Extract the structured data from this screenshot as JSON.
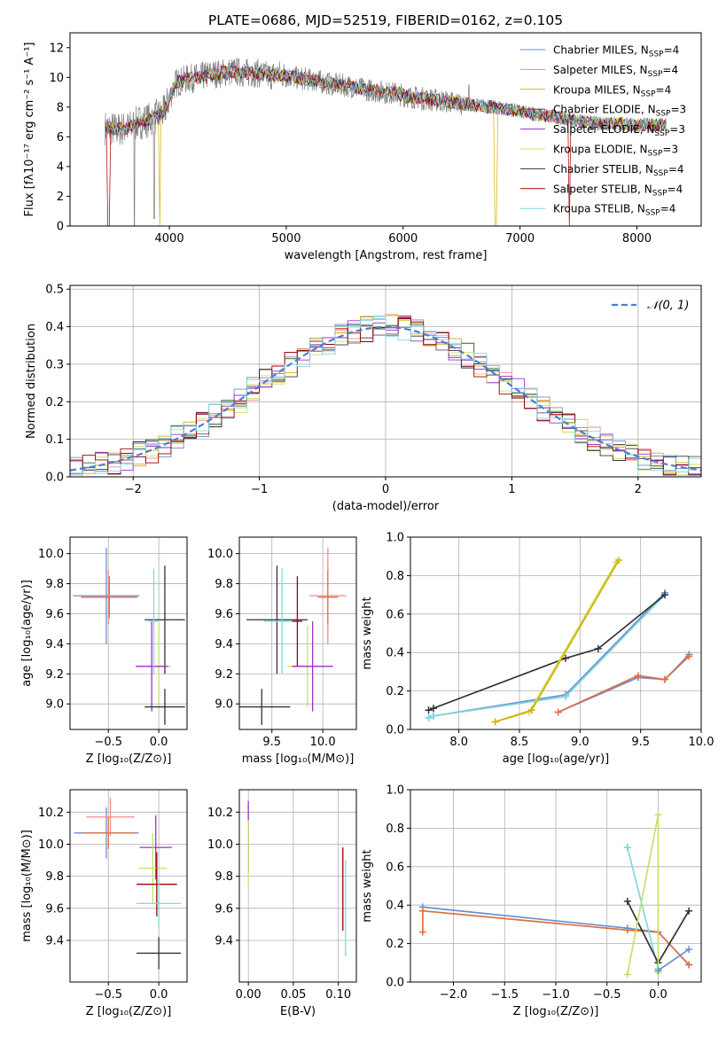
{
  "palette": [
    "#6a8fd0",
    "#f08a8a",
    "#d4b000",
    "#555555",
    "#9b30c8",
    "#c8e06a",
    "#333333",
    "#a00000",
    "#7fd8e0"
  ],
  "chart_data": [
    {
      "type": "line",
      "title": "PLATE=0686, MJD=52519, FIBERID=0162, z=0.105",
      "xlabel": "wavelength [Angstrom, rest frame]",
      "ylabel": "Flux [fλ10⁻¹⁷ erg cm⁻² s⁻¹ A⁻¹]",
      "xlim": [
        3150,
        8550
      ],
      "ylim": [
        0,
        13
      ],
      "xticks": [
        4000,
        5000,
        6000,
        7000,
        8000
      ],
      "yticks": [
        0,
        2,
        4,
        6,
        8,
        10,
        12
      ],
      "grid": false,
      "legend_position": "top-right",
      "legend": [
        "Chabrier MILES, N_SSP=4",
        "Salpeter MILES, N_SSP=4",
        "Kroupa MILES, N_SSP=4",
        "Chabrier ELODIE, N_SSP=3",
        "Salpeter ELODIE, N_SSP=3",
        "Kroupa ELODIE, N_SSP=3",
        "Chabrier STELIB, N_SSP=4",
        "Salpeter STELIB, N_SSP=4",
        "Kroupa STELIB, N_SSP=4"
      ],
      "spectrum_nodes": {
        "wavelength": [
          3450,
          3550,
          3650,
          3750,
          3850,
          3950,
          4050,
          4150,
          4250,
          4350,
          4450,
          4550,
          4650,
          4750,
          4850,
          4950,
          5050,
          5150,
          5250,
          5350,
          5450,
          5550,
          5650,
          5750,
          5850,
          5950,
          6050,
          6150,
          6250,
          6350,
          6450,
          6550,
          6650,
          6750,
          6850,
          6950,
          7050,
          7150,
          7250,
          7350,
          7450,
          7550,
          7650,
          7750,
          7850,
          7950,
          8050,
          8150,
          8250
        ],
        "flux": [
          6.6,
          6.5,
          6.6,
          7.0,
          7.2,
          7.6,
          9.6,
          9.9,
          10.0,
          10.2,
          10.3,
          10.4,
          10.3,
          10.3,
          10.1,
          10.2,
          10.0,
          9.9,
          9.8,
          9.6,
          9.5,
          9.4,
          9.2,
          9.1,
          9.0,
          8.9,
          8.7,
          8.6,
          8.5,
          8.4,
          8.3,
          8.2,
          8.1,
          8.0,
          7.9,
          7.8,
          7.6,
          7.5,
          7.4,
          7.3,
          7.1,
          7.0,
          6.9,
          6.9,
          6.9,
          6.8,
          6.8,
          6.8,
          6.8
        ]
      }
    },
    {
      "type": "line",
      "xlabel": "(data-model)/error",
      "ylabel": "Normed distribution",
      "xlim": [
        -2.5,
        2.5
      ],
      "ylim": [
        0,
        0.51
      ],
      "xticks": [
        -2,
        -1,
        0,
        1,
        2
      ],
      "yticks": [
        0.0,
        0.1,
        0.2,
        0.3,
        0.4,
        0.5
      ],
      "grid": true,
      "legend_position": "top-right",
      "legend": [
        "𝒩(0, 1)"
      ],
      "histogram_bin_width": 0.1
    },
    {
      "type": "scatter",
      "xlabel": "Z [log₁₀(Z/Z⊙)]",
      "ylabel": "age  [log₁₀(age/yr)]",
      "xlim": [
        -0.88,
        0.28
      ],
      "ylim": [
        8.83,
        10.11
      ],
      "xticks": [
        -0.5,
        0.0
      ],
      "yticks": [
        9.0,
        9.2,
        9.4,
        9.6,
        9.8,
        10.0
      ],
      "grid": true,
      "points": [
        {
          "x": -0.52,
          "y": 9.72,
          "xerr": 0.33,
          "yerr": 0.32,
          "color": "#6a8fd0"
        },
        {
          "x": -0.5,
          "y": 9.71,
          "xerr": 0.27,
          "yerr": 0.18,
          "color": "#f08a8a"
        },
        {
          "x": -0.49,
          "y": 9.71,
          "xerr": 0.28,
          "yerr": 0.14,
          "color": "#e07040"
        },
        {
          "x": 0.06,
          "y": 9.56,
          "xerr": 0.2,
          "yerr": 0.36,
          "color": "#333333"
        },
        {
          "x": 0.0,
          "y": 9.25,
          "xerr": 0.12,
          "yerr": 0.27,
          "color": "#c8e06a"
        },
        {
          "x": -0.07,
          "y": 9.25,
          "xerr": 0.16,
          "yerr": 0.3,
          "color": "#9b30c8"
        },
        {
          "x": 0.06,
          "y": 8.98,
          "xerr": 0.2,
          "yerr": 0.12,
          "color": "#333333"
        },
        {
          "x": -0.05,
          "y": 9.55,
          "xerr": 0.05,
          "yerr": 0.35,
          "color": "#7fd8e0"
        }
      ]
    },
    {
      "type": "scatter",
      "xlabel": "mass [log₁₀(M/M⊙)]",
      "ylabel": "",
      "xlim": [
        9.18,
        10.33
      ],
      "ylim": [
        8.83,
        10.11
      ],
      "xticks": [
        9.5,
        10.0
      ],
      "yticks": [
        9.0,
        9.2,
        9.4,
        9.6,
        9.8,
        10.0
      ],
      "grid": true,
      "points": [
        {
          "x": 10.05,
          "y": 9.72,
          "xerr": 0.18,
          "yerr": 0.32,
          "color": "#f08a8a"
        },
        {
          "x": 10.05,
          "y": 9.71,
          "xerr": 0.1,
          "yerr": 0.18,
          "color": "#e07040"
        },
        {
          "x": 9.55,
          "y": 9.56,
          "xerr": 0.3,
          "yerr": 0.36,
          "color": "#333333"
        },
        {
          "x": 9.85,
          "y": 9.25,
          "xerr": 0.2,
          "yerr": 0.27,
          "color": "#c8e06a"
        },
        {
          "x": 9.9,
          "y": 9.25,
          "xerr": 0.2,
          "yerr": 0.3,
          "color": "#9b30c8"
        },
        {
          "x": 9.4,
          "y": 8.98,
          "xerr": 0.28,
          "yerr": 0.12,
          "color": "#333333"
        },
        {
          "x": 9.6,
          "y": 9.55,
          "xerr": 0.18,
          "yerr": 0.35,
          "color": "#7fd8e0"
        },
        {
          "x": 9.75,
          "y": 9.55,
          "xerr": 0.05,
          "yerr": 0.3,
          "color": "#a00000"
        }
      ]
    },
    {
      "type": "line",
      "xlabel": "age  [log₁₀(age/yr)]",
      "ylabel": "mass weight",
      "xlim": [
        7.6,
        10.0
      ],
      "ylim": [
        0,
        1
      ],
      "xticks": [
        8.0,
        8.5,
        9.0,
        9.5,
        10.0
      ],
      "yticks": [
        0.0,
        0.2,
        0.4,
        0.6,
        0.8,
        1.0
      ],
      "grid": true,
      "series": [
        {
          "x": [
            7.75,
            7.79,
            8.88,
            9.7
          ],
          "y": [
            0.06,
            0.07,
            0.18,
            0.71
          ],
          "color": "#6a8fd0"
        },
        {
          "x": [
            7.75,
            7.79,
            8.88,
            9.7
          ],
          "y": [
            0.06,
            0.07,
            0.17,
            0.7
          ],
          "color": "#7fd8e0"
        },
        {
          "x": [
            8.82,
            9.48,
            9.7,
            9.9
          ],
          "y": [
            0.09,
            0.27,
            0.26,
            0.39
          ],
          "color": "#6a8fd0"
        },
        {
          "x": [
            8.82,
            9.48,
            9.7,
            9.9
          ],
          "y": [
            0.09,
            0.28,
            0.26,
            0.38
          ],
          "color": "#e07040"
        },
        {
          "x": [
            7.75,
            7.79,
            8.88,
            9.15,
            9.7
          ],
          "y": [
            0.1,
            0.11,
            0.37,
            0.42,
            0.7
          ],
          "color": "#333333"
        },
        {
          "x": [
            8.3,
            8.58,
            9.3
          ],
          "y": [
            0.04,
            0.09,
            0.87
          ],
          "color": "#c8e06a"
        },
        {
          "x": [
            8.3,
            8.6,
            9.32
          ],
          "y": [
            0.04,
            0.1,
            0.88
          ],
          "color": "#d4b000"
        }
      ]
    },
    {
      "type": "scatter",
      "xlabel": "Z [log₁₀(Z/Z⊙)]",
      "ylabel": "mass [log₁₀(M/M⊙)]",
      "xlim": [
        -0.88,
        0.28
      ],
      "ylim": [
        9.14,
        10.34
      ],
      "xticks": [
        -0.5,
        0.0
      ],
      "yticks": [
        9.4,
        9.6,
        9.8,
        10.0,
        10.2
      ],
      "grid": true,
      "points": [
        {
          "x": -0.52,
          "y": 10.07,
          "xerr": 0.32,
          "yerr": 0.16,
          "color": "#6a8fd0"
        },
        {
          "x": -0.48,
          "y": 10.17,
          "xerr": 0.24,
          "yerr": 0.12,
          "color": "#f08a8a"
        },
        {
          "x": -0.5,
          "y": 10.07,
          "xerr": 0.26,
          "yerr": 0.1,
          "color": "#e07040"
        },
        {
          "x": -0.03,
          "y": 9.98,
          "xerr": 0.16,
          "yerr": 0.2,
          "color": "#9b30c8"
        },
        {
          "x": -0.06,
          "y": 9.85,
          "xerr": 0.14,
          "yerr": 0.22,
          "color": "#c8e06a"
        },
        {
          "x": -0.02,
          "y": 9.75,
          "xerr": 0.2,
          "yerr": 0.2,
          "color": "#a00000"
        },
        {
          "x": 0.0,
          "y": 9.63,
          "xerr": 0.22,
          "yerr": 0.15,
          "color": "#7fd8e0"
        },
        {
          "x": 0.0,
          "y": 9.32,
          "xerr": 0.22,
          "yerr": 0.1,
          "color": "#333333"
        }
      ]
    },
    {
      "type": "scatter",
      "xlabel": "E(B-V)",
      "ylabel": "",
      "xlim": [
        -0.01,
        0.12
      ],
      "ylim": [
        9.14,
        10.34
      ],
      "xticks": [
        0.0,
        0.05,
        0.1
      ],
      "yticks": [
        9.4,
        9.6,
        9.8,
        10.0,
        10.2
      ],
      "grid": true,
      "points": [
        {
          "x": 0.0,
          "y": 10.05,
          "xerr": 0.0,
          "yerr": 0.22,
          "color": "#9b30c8"
        },
        {
          "x": 0.0,
          "y": 9.95,
          "xerr": 0.0,
          "yerr": 0.2,
          "color": "#c8e06a"
        },
        {
          "x": 0.105,
          "y": 9.72,
          "xerr": 0.0,
          "yerr": 0.26,
          "color": "#a00000"
        },
        {
          "x": 0.108,
          "y": 9.6,
          "xerr": 0.0,
          "yerr": 0.3,
          "color": "#7fd8e0"
        }
      ]
    },
    {
      "type": "line",
      "xlabel": "Z [log₁₀(Z/Z⊙)]",
      "ylabel": "mass weight",
      "xlim": [
        -2.42,
        0.42
      ],
      "ylim": [
        0,
        1
      ],
      "xticks": [
        -2.0,
        -1.5,
        -1.0,
        -0.5,
        0.0
      ],
      "yticks": [
        0.0,
        0.2,
        0.4,
        0.6,
        0.8,
        1.0
      ],
      "grid": true,
      "series": [
        {
          "x": [
            -2.3,
            -0.3,
            0.0,
            0.3
          ],
          "y": [
            0.39,
            0.28,
            0.26,
            0.09
          ],
          "color": "#6a8fd0"
        },
        {
          "x": [
            -2.3,
            -2.3,
            -0.3,
            0.0,
            0.3
          ],
          "y": [
            0.26,
            0.37,
            0.27,
            0.26,
            0.09
          ],
          "color": "#e07040"
        },
        {
          "x": [
            -0.3,
            -0.3,
            0.0,
            0.0
          ],
          "y": [
            0.7,
            0.7,
            0.07,
            0.06
          ],
          "color": "#7fd8e0"
        },
        {
          "x": [
            -0.3,
            0.0,
            0.3
          ],
          "y": [
            0.42,
            0.1,
            0.37
          ],
          "color": "#333333"
        },
        {
          "x": [
            -0.3,
            0.0,
            0.0
          ],
          "y": [
            0.04,
            0.87,
            0.05
          ],
          "color": "#c8e06a"
        },
        {
          "x": [
            0.0,
            0.3
          ],
          "y": [
            0.06,
            0.17
          ],
          "color": "#6a8fd0"
        }
      ]
    }
  ]
}
